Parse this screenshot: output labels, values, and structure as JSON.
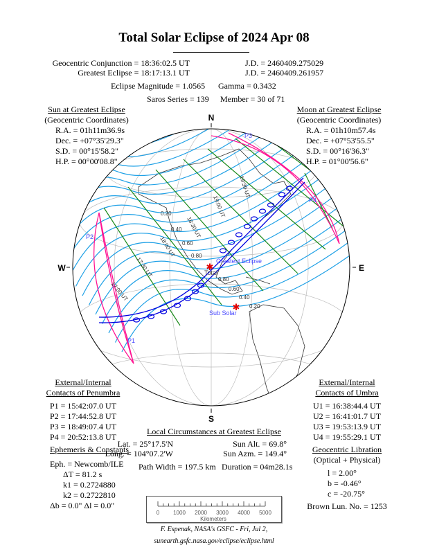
{
  "title": "Total Solar Eclipse of  2024 Apr 08",
  "header": {
    "conjunction": "Geocentric Conjunction =  18:36:02.5 UT",
    "conjunction_jd": "J.D. =  2460409.275029",
    "greatest": "Greatest Eclipse =  18:17:13.1 UT",
    "greatest_jd": "J.D. =  2460409.261957",
    "magnitude": "Eclipse Magnitude =  1.0565",
    "gamma": "Gamma =  0.3432",
    "saros": "Saros Series = 139",
    "member": "Member = 30 of 71"
  },
  "sun": {
    "heading": "Sun at Greatest Eclipse",
    "sub": "(Geocentric Coordinates)",
    "lines": [
      "R.A. = 01h11m36.9s",
      "Dec. = +07°35'29.3\"",
      "S.D. =  00°15'58.2\"",
      "H.P. =  00°00'08.8\""
    ]
  },
  "moon": {
    "heading": "Moon at Greatest Eclipse",
    "sub": "(Geocentric Coordinates)",
    "lines": [
      "R.A. = 01h10m57.4s",
      "Dec. = +07°53'55.5\"",
      "S.D. =  00°16'36.3\"",
      "H.P. =  01°00'56.6\""
    ]
  },
  "penumbra": {
    "heading1": "External/Internal",
    "heading2": "Contacts of Penumbra",
    "lines": [
      "P1 = 15:42:07.0 UT",
      "P2 = 17:44:52.8 UT",
      "P3 = 18:49:07.4 UT",
      "P4 = 20:52:13.8 UT"
    ]
  },
  "umbra": {
    "heading1": "External/Internal",
    "heading2": "Contacts of Umbra",
    "lines": [
      "U1 = 16:38:44.4 UT",
      "U2 = 16:41:01.7 UT",
      "U3 = 19:53:13.9 UT",
      "U4 = 19:55:29.1 UT"
    ]
  },
  "local": {
    "heading": "Local Circumstances at Greatest Eclipse",
    "lat": "Lat. =  25°17.5'N",
    "long": "Long. = 104°07.2'W",
    "sun_alt": "Sun Alt. =   69.8°",
    "sun_azm": "Sun Azm. = 149.4°",
    "path_width": "Path Width = 197.5 km",
    "duration": "Duration =  04m28.1s"
  },
  "ephemeris": {
    "heading": "Ephemeris & Constants",
    "eph": "Eph. = Newcomb/ILE",
    "dt": "ΔT =     81.2 s",
    "k1": "k1 = 0.2724880",
    "k2": "k2 = 0.2722810",
    "db": "Δb =   0.0\"     Δl =   0.0\""
  },
  "libration": {
    "heading": "Geocentric Libration",
    "sub": "(Optical + Physical)",
    "l": "l =    2.00°",
    "b": "b =  -0.46°",
    "c": "c = -20.75°",
    "brown": "Brown Lun. No. = 1253"
  },
  "scale": {
    "ticks": [
      "0",
      "1000",
      "2000",
      "3000",
      "4000",
      "5000"
    ],
    "unit": "Kilometers"
  },
  "credits": {
    "line1": "F. Espenak, NASA's GSFC - Fri, Jul 2,",
    "line2": "sunearth.gsfc.nasa.gov/eclipse/eclipse.html"
  },
  "map": {
    "compass": {
      "n": "N",
      "s": "S",
      "e": "E",
      "w": "W"
    },
    "contacts": [
      "P1",
      "P2",
      "P3",
      "P4"
    ],
    "greatest_label": "Greatest Eclipse",
    "total_label": "Total",
    "subsolar_label": "Sub Solar",
    "magnitudes_west": [
      "0.20",
      "0.40",
      "0.60",
      "0.80"
    ],
    "magnitudes_east": [
      "0.80",
      "0.60",
      "0.40",
      "0.20"
    ],
    "times": [
      "17:00 UT",
      "17:30 UT",
      "18:00 UT",
      "18:30 UT",
      "19:00 UT",
      "19:30 UT"
    ],
    "colors": {
      "penumbra": "#ff1493",
      "magnitude": "#1ea0e6",
      "time": "#1a8a1a",
      "path": "#0000e0",
      "label": "#4a4aff",
      "marker": "#e00000"
    }
  }
}
